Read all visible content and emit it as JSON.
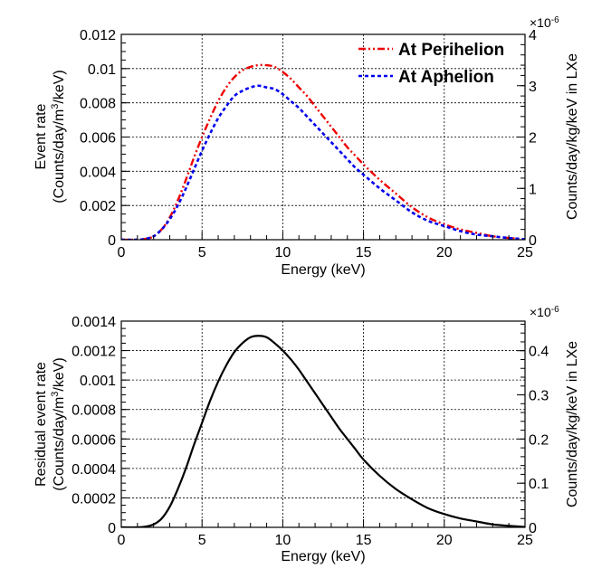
{
  "chart_data": [
    {
      "type": "line",
      "name": "top",
      "xlabel": "Energy (keV)",
      "ylabel_line1": "Event rate",
      "ylabel_line2_prefix": "(Counts/day/m",
      "ylabel_line2_sup": "3",
      "ylabel_line2_suffix": "/keV)",
      "right_ylabel": "Counts/day/kg/keV in LXe",
      "right_exponent_base": "×10",
      "right_exponent_power": "-6",
      "xlim": [
        0,
        25
      ],
      "ylim": [
        0,
        0.012
      ],
      "right_ylim": [
        0,
        4.0
      ],
      "x_ticks": [
        0,
        5,
        10,
        15,
        20,
        25
      ],
      "x_tick_labels": [
        "0",
        "5",
        "10",
        "15",
        "20",
        "25"
      ],
      "y_ticks": [
        0,
        0.002,
        0.004,
        0.006,
        0.008,
        0.01,
        0.012
      ],
      "y_tick_labels": [
        "0",
        "0.002",
        "0.004",
        "0.006",
        "0.008",
        "0.01",
        "0.012"
      ],
      "right_ticks": [
        0,
        1,
        2,
        3,
        4
      ],
      "right_tick_labels": [
        "0",
        "1",
        "2",
        "3",
        "4"
      ],
      "grid": true,
      "legend_position": "top-right",
      "series": [
        {
          "name": "At Perihelion",
          "color": "#ee0000",
          "style": "dash-dot",
          "x": [
            0,
            1,
            1.5,
            2,
            2.5,
            3,
            3.5,
            4,
            4.5,
            5,
            5.5,
            6,
            6.5,
            7,
            7.5,
            8,
            8.5,
            9,
            9.5,
            10,
            10.5,
            11,
            11.5,
            12,
            12.5,
            13,
            13.5,
            14,
            14.5,
            15,
            16,
            17,
            18,
            19,
            20,
            21,
            22,
            23,
            24,
            25
          ],
          "values": [
            0,
            0,
            5e-05,
            0.0002,
            0.0006,
            0.0013,
            0.0023,
            0.0035,
            0.0048,
            0.006,
            0.0071,
            0.0081,
            0.0089,
            0.0095,
            0.0099,
            0.0101,
            0.0102,
            0.0102,
            0.0101,
            0.0098,
            0.0094,
            0.0089,
            0.0084,
            0.0078,
            0.0072,
            0.0066,
            0.006,
            0.0054,
            0.0049,
            0.0044,
            0.0035,
            0.0027,
            0.0019,
            0.0013,
            0.0009,
            0.0006,
            0.0004,
            0.0002,
            0.0001,
            3e-05
          ]
        },
        {
          "name": "At Aphelion",
          "color": "#0000ee",
          "style": "dotted",
          "x": [
            0,
            1,
            1.5,
            2,
            2.5,
            3,
            3.5,
            4,
            4.5,
            5,
            5.5,
            6,
            6.5,
            7,
            7.5,
            8,
            8.5,
            9,
            9.5,
            10,
            10.5,
            11,
            11.5,
            12,
            12.5,
            13,
            13.5,
            14,
            14.5,
            15,
            16,
            17,
            18,
            19,
            20,
            21,
            22,
            23,
            24,
            25
          ],
          "values": [
            0,
            0,
            5e-05,
            0.0002,
            0.0006,
            0.0012,
            0.002,
            0.003,
            0.0041,
            0.0052,
            0.0062,
            0.0071,
            0.0078,
            0.0084,
            0.0087,
            0.0089,
            0.009,
            0.0089,
            0.0088,
            0.0085,
            0.0081,
            0.0077,
            0.0072,
            0.0067,
            0.0062,
            0.0057,
            0.0052,
            0.0047,
            0.0042,
            0.0038,
            0.003,
            0.0023,
            0.0016,
            0.0011,
            0.0008,
            0.0005,
            0.0003,
            0.0002,
            0.0001,
            3e-05
          ]
        }
      ]
    },
    {
      "type": "line",
      "name": "bottom",
      "xlabel": "Energy (keV)",
      "ylabel_line1": "Residual event rate",
      "ylabel_line2_prefix": "(Counts/day/m",
      "ylabel_line2_sup": "3",
      "ylabel_line2_suffix": "/keV)",
      "right_ylabel": "Counts/day/kg/keV in LXe",
      "right_exponent_base": "×10",
      "right_exponent_power": "-6",
      "xlim": [
        0,
        25
      ],
      "ylim": [
        0,
        0.0014
      ],
      "right_ylim": [
        0,
        0.467
      ],
      "x_ticks": [
        0,
        5,
        10,
        15,
        20,
        25
      ],
      "x_tick_labels": [
        "0",
        "5",
        "10",
        "15",
        "20",
        "25"
      ],
      "y_ticks": [
        0,
        0.0002,
        0.0004,
        0.0006,
        0.0008,
        0.001,
        0.0012,
        0.0014
      ],
      "y_tick_labels": [
        "0",
        "0.0002",
        "0.0004",
        "0.0006",
        "0.0008",
        "0.001",
        "0.0012",
        "0.0014"
      ],
      "right_ticks": [
        0,
        0.1,
        0.2,
        0.3,
        0.4
      ],
      "right_tick_labels": [
        "0",
        "0.1",
        "0.2",
        "0.3",
        "0.4"
      ],
      "grid": true,
      "series": [
        {
          "name": "Residual",
          "color": "#000000",
          "style": "solid",
          "x": [
            0,
            1,
            1.5,
            2,
            2.5,
            3,
            3.5,
            4,
            4.5,
            5,
            5.5,
            6,
            6.5,
            7,
            7.5,
            8,
            8.5,
            9,
            9.5,
            10,
            10.5,
            11,
            11.5,
            12,
            12.5,
            13,
            13.5,
            14,
            14.5,
            15,
            16,
            17,
            18,
            19,
            20,
            21,
            22,
            23,
            24,
            25
          ],
          "values": [
            0,
            0,
            5e-06,
            2e-05,
            6e-05,
            0.00014,
            0.00026,
            0.0004,
            0.00056,
            0.00071,
            0.00086,
            0.00099,
            0.0011,
            0.00119,
            0.00125,
            0.00129,
            0.0013,
            0.00129,
            0.00125,
            0.0012,
            0.00114,
            0.00107,
            0.00099,
            0.00091,
            0.00083,
            0.00075,
            0.00067,
            0.0006,
            0.00053,
            0.00046,
            0.00035,
            0.00026,
            0.00019,
            0.00013,
            9e-05,
            6e-05,
            4e-05,
            2e-05,
            1e-05,
            3e-06
          ]
        }
      ]
    }
  ]
}
